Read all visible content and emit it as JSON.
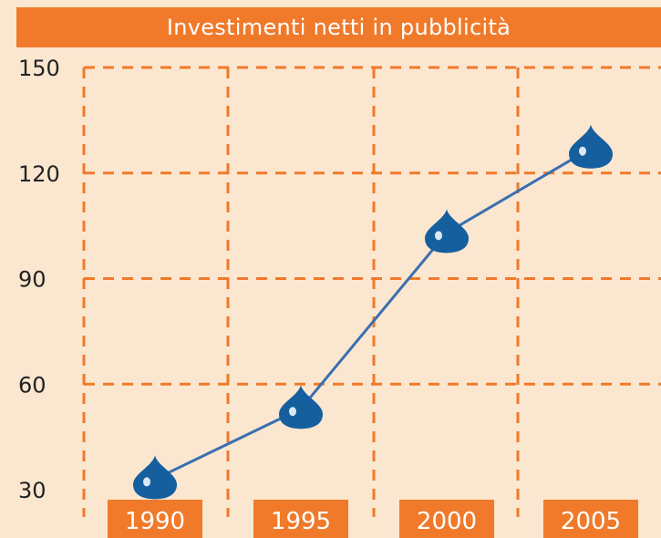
{
  "chart_data": {
    "type": "line",
    "title": "Investimenti netti in pubblicità",
    "xlabel": "",
    "ylabel": "",
    "categories": [
      "1990",
      "1995",
      "2000",
      "2005"
    ],
    "y_ticks": [
      "30",
      "60",
      "90",
      "120",
      "150"
    ],
    "series": [
      {
        "values": [
          33,
          53,
          103,
          127
        ]
      }
    ],
    "ylim": [
      30,
      150
    ],
    "grid": true,
    "marker": "drop",
    "colors": {
      "background": "#fbe7cf",
      "accent": "#f07a2a",
      "line": "#3a6fb0",
      "marker": "#155f9e"
    }
  }
}
